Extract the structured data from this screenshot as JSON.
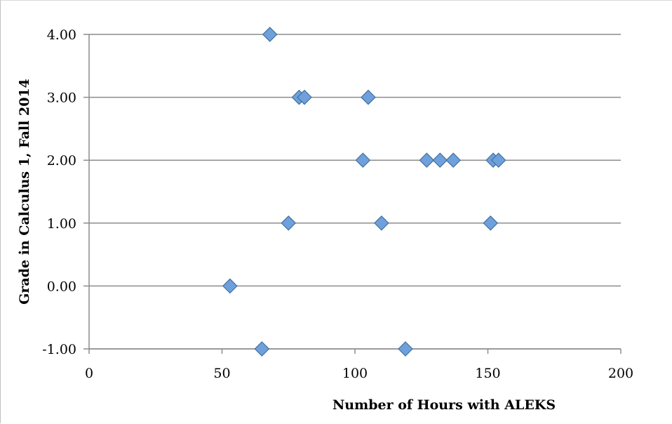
{
  "chart_data": {
    "type": "scatter",
    "xlabel": "Number of Hours with ALEKS",
    "ylabel": "Grade in Calculus 1, Fall 2014",
    "xlim": [
      0,
      200
    ],
    "ylim": [
      -1,
      4
    ],
    "xticks": [
      "0",
      "50",
      "100",
      "150",
      "200"
    ],
    "yticks": [
      "-1.00",
      "0.00",
      "1.00",
      "2.00",
      "3.00",
      "4.00"
    ],
    "grid": "horizontal",
    "legend": "none",
    "marker": "diamond",
    "marker_color": "#6fa0dc",
    "marker_edge": "#41719c",
    "points": [
      {
        "x": 68,
        "y": 4
      },
      {
        "x": 79,
        "y": 3
      },
      {
        "x": 81,
        "y": 3
      },
      {
        "x": 105,
        "y": 3
      },
      {
        "x": 103,
        "y": 2
      },
      {
        "x": 127,
        "y": 2
      },
      {
        "x": 132,
        "y": 2
      },
      {
        "x": 137,
        "y": 2
      },
      {
        "x": 152,
        "y": 2
      },
      {
        "x": 154,
        "y": 2
      },
      {
        "x": 75,
        "y": 1
      },
      {
        "x": 110,
        "y": 1
      },
      {
        "x": 151,
        "y": 1
      },
      {
        "x": 53,
        "y": 0
      },
      {
        "x": 65,
        "y": -1
      },
      {
        "x": 119,
        "y": -1
      }
    ]
  }
}
